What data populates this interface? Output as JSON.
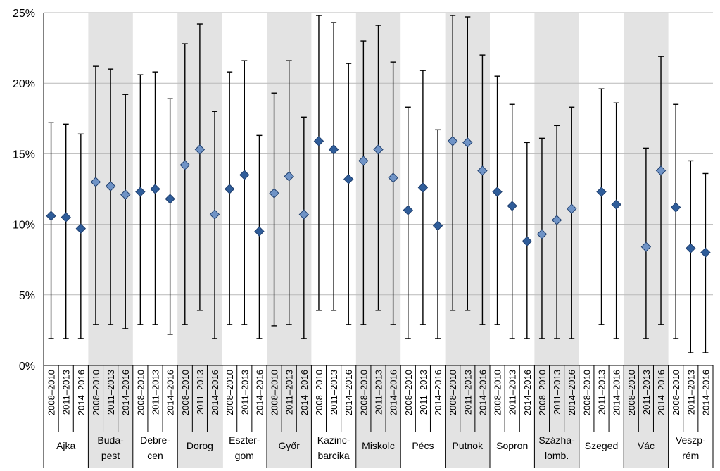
{
  "chart_data": {
    "type": "scatter",
    "subtype": "point-with-error-bars",
    "title": "",
    "xlabel": "",
    "ylabel": "",
    "ylim": [
      0,
      25
    ],
    "y_unit": "%",
    "y_ticks": [
      "0%",
      "5%",
      "10%",
      "15%",
      "20%",
      "25%"
    ],
    "grid": "horizontal",
    "legend": "none",
    "colors": {
      "marker_fill": "#2f5d9a",
      "marker_fill_light": "#6f93c6",
      "marker_stroke": "#1f3f6e",
      "band": "#e3e3e3",
      "error_bar": "#000000",
      "grid": "#b9b9b9"
    },
    "periods": [
      "2008–2010",
      "2011–2013",
      "2014–2016"
    ],
    "groups": [
      {
        "label": "Ajka",
        "shaded": false,
        "points": [
          {
            "period": "2008–2010",
            "y": 10.6,
            "low": 1.9,
            "high": 17.2
          },
          {
            "period": "2011–2013",
            "y": 10.5,
            "low": 1.9,
            "high": 17.1
          },
          {
            "period": "2014–2016",
            "y": 9.7,
            "low": 1.9,
            "high": 16.4
          }
        ]
      },
      {
        "label": "Buda-\npest",
        "shaded": true,
        "points": [
          {
            "period": "2008–2010",
            "y": 13.0,
            "low": 2.9,
            "high": 21.2
          },
          {
            "period": "2011–2013",
            "y": 12.7,
            "low": 2.9,
            "high": 21.0
          },
          {
            "period": "2014–2016",
            "y": 12.1,
            "low": 2.6,
            "high": 19.2
          }
        ]
      },
      {
        "label": "Debre-\ncen",
        "shaded": false,
        "points": [
          {
            "period": "2008–2010",
            "y": 12.3,
            "low": 2.9,
            "high": 20.6
          },
          {
            "period": "2011–2013",
            "y": 12.5,
            "low": 2.9,
            "high": 20.8
          },
          {
            "period": "2014–2016",
            "y": 11.8,
            "low": 2.2,
            "high": 18.9
          }
        ]
      },
      {
        "label": "Dorog",
        "shaded": true,
        "points": [
          {
            "period": "2008–2010",
            "y": 14.2,
            "low": 2.9,
            "high": 22.8
          },
          {
            "period": "2011–2013",
            "y": 15.3,
            "low": 3.9,
            "high": 24.2
          },
          {
            "period": "2014–2016",
            "y": 10.7,
            "low": 1.9,
            "high": 18.0
          }
        ]
      },
      {
        "label": "Eszter-\ngom",
        "shaded": false,
        "points": [
          {
            "period": "2008–2010",
            "y": 12.5,
            "low": 2.9,
            "high": 20.8
          },
          {
            "period": "2011–2013",
            "y": 13.5,
            "low": 2.9,
            "high": 21.6
          },
          {
            "period": "2014–2016",
            "y": 9.5,
            "low": 1.9,
            "high": 16.3
          }
        ]
      },
      {
        "label": "Győr",
        "shaded": true,
        "points": [
          {
            "period": "2008–2010",
            "y": 12.2,
            "low": 2.8,
            "high": 19.3
          },
          {
            "period": "2011–2013",
            "y": 13.4,
            "low": 2.9,
            "high": 21.6
          },
          {
            "period": "2014–2016",
            "y": 10.7,
            "low": 1.9,
            "high": 17.6
          }
        ]
      },
      {
        "label": "Kazinc-\nbarcika",
        "shaded": false,
        "points": [
          {
            "period": "2008–2010",
            "y": 15.9,
            "low": 3.9,
            "high": 24.8
          },
          {
            "period": "2011–2013",
            "y": 15.3,
            "low": 3.9,
            "high": 24.3
          },
          {
            "period": "2014–2016",
            "y": 13.2,
            "low": 2.9,
            "high": 21.4
          }
        ]
      },
      {
        "label": "Miskolc",
        "shaded": true,
        "points": [
          {
            "period": "2008–2010",
            "y": 14.5,
            "low": 2.9,
            "high": 23.0
          },
          {
            "period": "2011–2013",
            "y": 15.3,
            "low": 3.9,
            "high": 24.1
          },
          {
            "period": "2014–2016",
            "y": 13.3,
            "low": 2.9,
            "high": 21.5
          }
        ]
      },
      {
        "label": "Pécs",
        "shaded": false,
        "points": [
          {
            "period": "2008–2010",
            "y": 11.0,
            "low": 1.9,
            "high": 18.3
          },
          {
            "period": "2011–2013",
            "y": 12.6,
            "low": 2.9,
            "high": 20.9
          },
          {
            "period": "2014–2016",
            "y": 9.9,
            "low": 1.9,
            "high": 16.7
          }
        ]
      },
      {
        "label": "Putnok",
        "shaded": true,
        "points": [
          {
            "period": "2008–2010",
            "y": 15.9,
            "low": 3.9,
            "high": 24.8
          },
          {
            "period": "2011–2013",
            "y": 15.8,
            "low": 3.9,
            "high": 24.7
          },
          {
            "period": "2014–2016",
            "y": 13.8,
            "low": 2.9,
            "high": 22.0
          }
        ]
      },
      {
        "label": "Sopron",
        "shaded": false,
        "points": [
          {
            "period": "2008–2010",
            "y": 12.3,
            "low": 2.9,
            "high": 20.5
          },
          {
            "period": "2011–2013",
            "y": 11.3,
            "low": 1.9,
            "high": 18.5
          },
          {
            "period": "2014–2016",
            "y": 8.8,
            "low": 1.9,
            "high": 15.8
          }
        ]
      },
      {
        "label": "Százha-\nlomb.",
        "shaded": true,
        "points": [
          {
            "period": "2008–2010",
            "y": 9.3,
            "low": 1.9,
            "high": 16.1
          },
          {
            "period": "2011–2013",
            "y": 10.3,
            "low": 1.9,
            "high": 17.0
          },
          {
            "period": "2014–2016",
            "y": 11.1,
            "low": 1.9,
            "high": 18.3
          }
        ]
      },
      {
        "label": "Szeged",
        "shaded": false,
        "points": [
          {
            "period": "2008–2010",
            "y": null,
            "low": null,
            "high": null
          },
          {
            "period": "2011–2013",
            "y": 12.3,
            "low": 2.9,
            "high": 19.6
          },
          {
            "period": "2014–2016",
            "y": 11.4,
            "low": 1.9,
            "high": 18.6
          }
        ]
      },
      {
        "label": "Vác",
        "shaded": true,
        "points": [
          {
            "period": "2008–2010",
            "y": null,
            "low": null,
            "high": null
          },
          {
            "period": "2011–2013",
            "y": 8.4,
            "low": 1.9,
            "high": 15.4
          },
          {
            "period": "2014–2016",
            "y": 13.8,
            "low": 2.9,
            "high": 21.9
          }
        ]
      },
      {
        "label": "Veszp-\nrém",
        "shaded": false,
        "points": [
          {
            "period": "2008–2010",
            "y": 11.2,
            "low": 1.9,
            "high": 18.5
          },
          {
            "period": "2011–2013",
            "y": 8.3,
            "low": 0.9,
            "high": 14.5
          },
          {
            "period": "2014–2016",
            "y": 8.0,
            "low": 0.9,
            "high": 13.6
          }
        ]
      }
    ]
  }
}
